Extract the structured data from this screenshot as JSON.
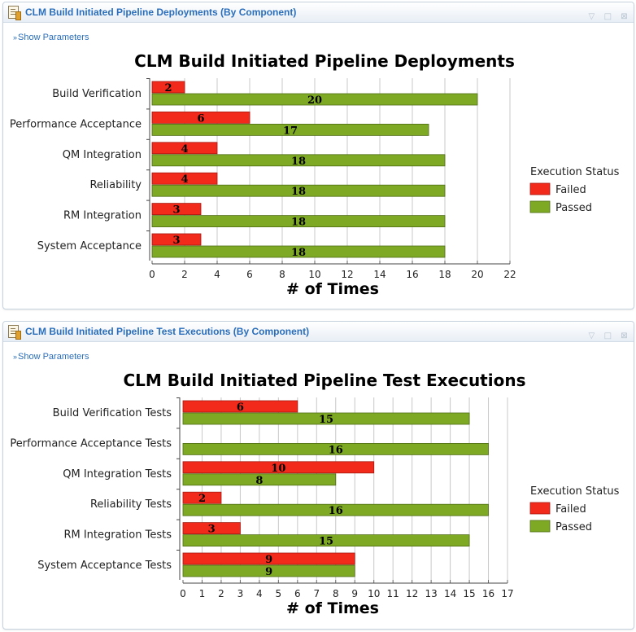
{
  "widgets": [
    {
      "title": "CLM Build Initiated Pipeline Deployments (By Component)",
      "show_parameters": "Show Parameters",
      "show_parameters_icon": "chevron-double-down-icon"
    },
    {
      "title": "CLM Build Initiated Pipeline Test Executions (By Component)",
      "show_parameters": "Show Parameters",
      "show_parameters_icon": "chevron-double-down-icon"
    }
  ],
  "chart_data": [
    {
      "type": "bar",
      "orientation": "horizontal",
      "title": "CLM Build Initiated Pipeline Deployments",
      "xlabel": "# of Times",
      "ylabel": "",
      "categories": [
        "Build Verification",
        "Performance Acceptance",
        "QM Integration",
        "Reliability",
        "RM Integration",
        "System Acceptance"
      ],
      "series": [
        {
          "name": "Failed",
          "color": "#f22a1c",
          "values": [
            2,
            6,
            4,
            4,
            3,
            3
          ]
        },
        {
          "name": "Passed",
          "color": "#7ea924",
          "values": [
            20,
            17,
            18,
            18,
            18,
            18
          ]
        }
      ],
      "xlim": [
        0,
        22
      ],
      "xticks": [
        0,
        2,
        4,
        6,
        8,
        10,
        12,
        14,
        16,
        18,
        20,
        22
      ],
      "grid": true,
      "legend_title": "Execution Status",
      "legend_position": "right"
    },
    {
      "type": "bar",
      "orientation": "horizontal",
      "title": "CLM Build Initiated Pipeline Test Executions",
      "xlabel": "# of Times",
      "ylabel": "",
      "categories": [
        "Build Verification Tests",
        "Performance Acceptance Tests",
        "QM Integration Tests",
        "Reliability Tests",
        "RM Integration Tests",
        "System Acceptance Tests"
      ],
      "series": [
        {
          "name": "Failed",
          "color": "#f22a1c",
          "values": [
            6,
            null,
            10,
            2,
            3,
            9
          ]
        },
        {
          "name": "Passed",
          "color": "#7ea924",
          "values": [
            15,
            16,
            8,
            16,
            15,
            9
          ]
        }
      ],
      "xlim": [
        0,
        17
      ],
      "xticks": [
        0,
        1,
        2,
        3,
        4,
        5,
        6,
        7,
        8,
        9,
        10,
        11,
        12,
        13,
        14,
        15,
        16,
        17
      ],
      "grid": true,
      "legend_title": "Execution Status",
      "legend_position": "right"
    }
  ]
}
